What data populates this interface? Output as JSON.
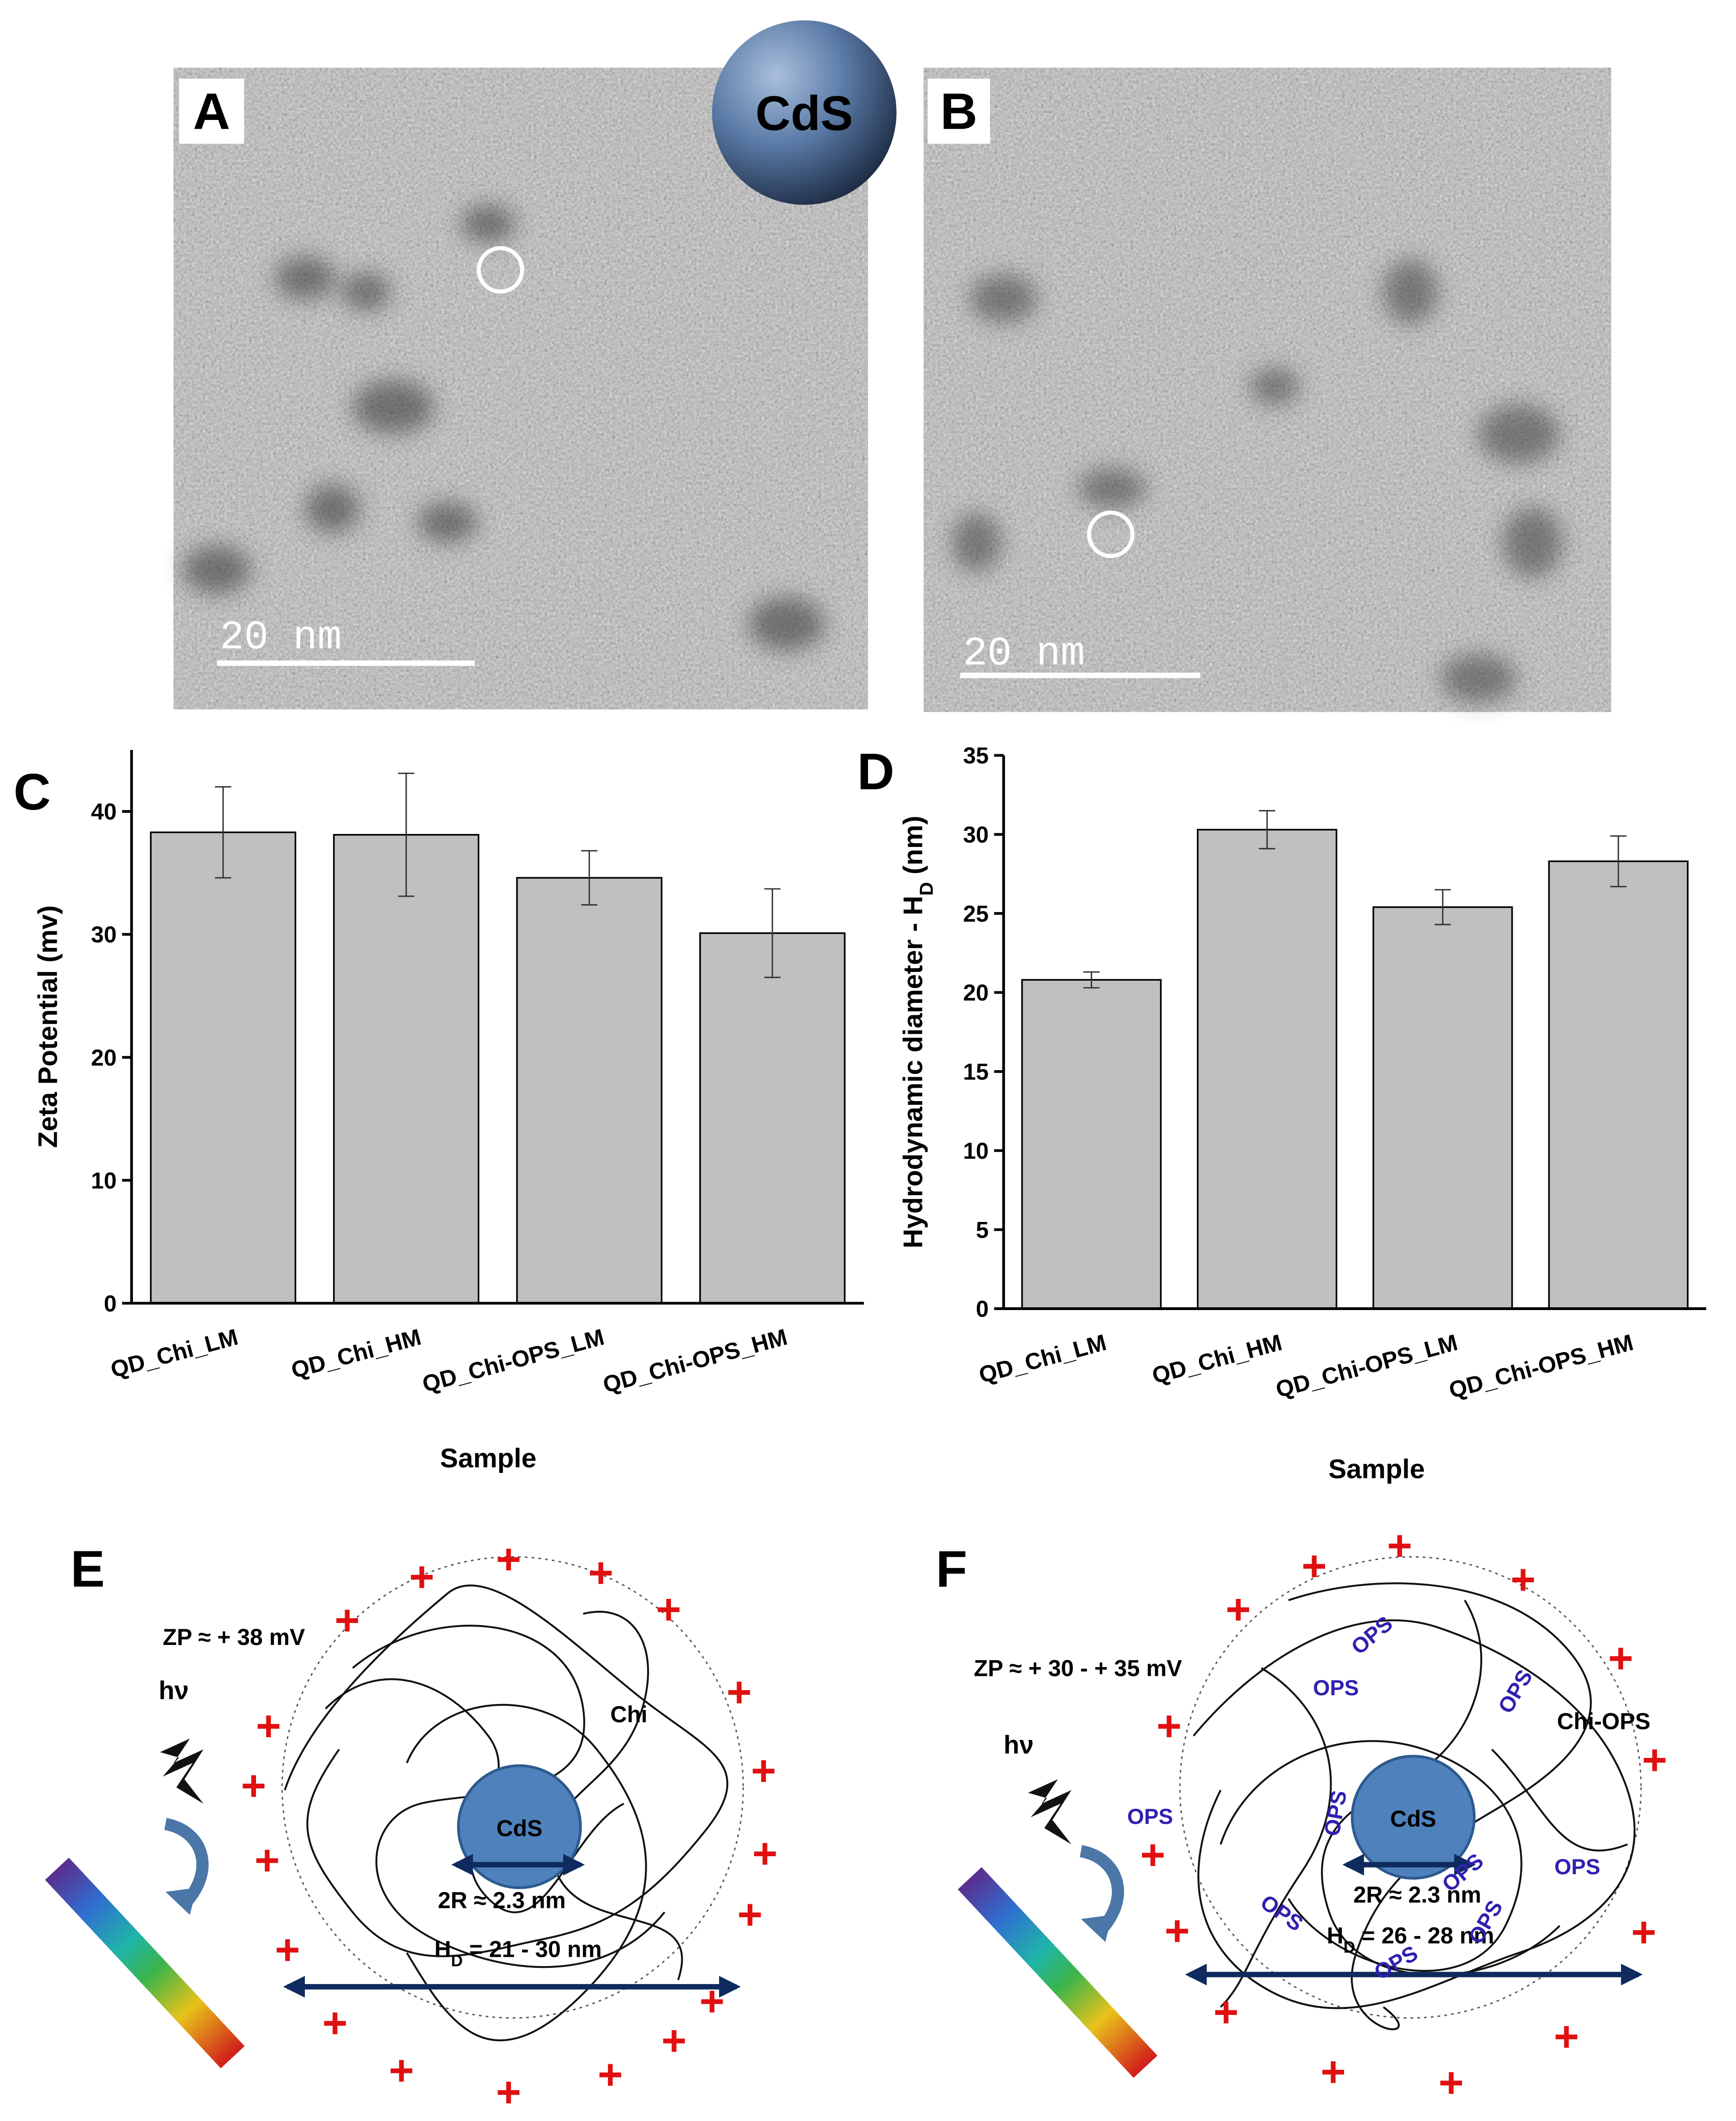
{
  "panel_a": {
    "label": "A",
    "badge": "CdS",
    "scale_bar": "20 nm"
  },
  "panel_b": {
    "label": "B",
    "scale_bar": "20 nm"
  },
  "chart_data": [
    {
      "type": "bar",
      "panel_label": "C",
      "y_label": "Zeta Potential (mv)",
      "x_label": "Sample",
      "categories": [
        "QD_Chi_LM",
        "QD_Chi_HM",
        "QD_Chi-OPS_LM",
        "QD_Chi-OPS_HM"
      ],
      "values": [
        38.3,
        38.1,
        34.6,
        30.1
      ],
      "errors": [
        3.7,
        5.0,
        2.2,
        3.6
      ],
      "color": "#c0c0c0",
      "ylim": [
        0,
        45
      ],
      "yticks": [
        0,
        10,
        20,
        30,
        40
      ]
    },
    {
      "type": "bar",
      "panel_label": "D",
      "y_label": [
        "Hydrodynamic diameter - H",
        "D",
        " (nm)"
      ],
      "x_label": "Sample",
      "categories": [
        "QD_Chi_LM",
        "QD_Chi_HM",
        "QD_Chi-OPS_LM",
        "QD_Chi-OPS_HM"
      ],
      "values": [
        20.8,
        30.3,
        25.4,
        28.3
      ],
      "errors": [
        0.5,
        1.2,
        1.1,
        1.6
      ],
      "color": "#c0c0c0",
      "ylim": [
        0,
        35
      ],
      "yticks": [
        0,
        5,
        10,
        15,
        20,
        25,
        30,
        35
      ]
    }
  ],
  "panel_e": {
    "label": "E",
    "zeta": "ZP  ≈ + 38 mV",
    "light": "hν",
    "polymer": "Chi",
    "core": "CdS",
    "core_size": "2R ≈ 2.3 nm",
    "hd": [
      "H",
      "D",
      " = 21 - 30 nm"
    ]
  },
  "panel_f": {
    "label": "F",
    "zeta": "ZP  ≈ + 30 - + 35 mV",
    "light": "hν",
    "polymer": "Chi-OPS",
    "core": "CdS",
    "core_size": "2R ≈ 2.3 nm",
    "hd": [
      "H",
      "D",
      " = 26 - 28 nm"
    ],
    "ops_labels": [
      "OPS",
      "OPS",
      "OPS",
      "OPS",
      "OPS",
      "OPS",
      "OPS",
      "OPS",
      "OPS",
      "OPS"
    ]
  }
}
